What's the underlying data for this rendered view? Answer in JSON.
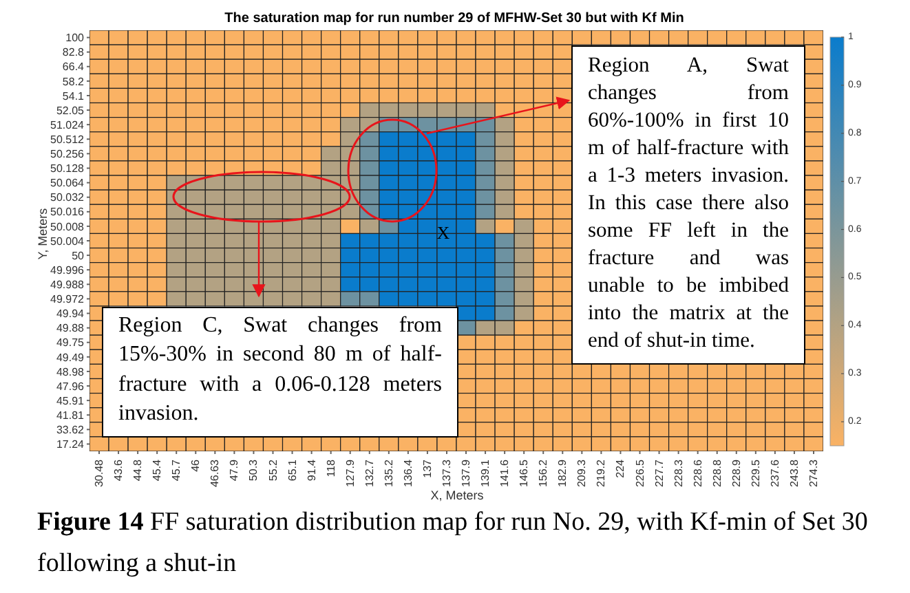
{
  "chart_data": {
    "type": "heatmap",
    "title": "The saturation map for run number 29 of MFHW-Set 30 but with Kf Min",
    "xlabel": "X, Meters",
    "ylabel": "Y, Meters",
    "categories": [
      "30.48",
      "43.6",
      "44.8",
      "45.4",
      "45.7",
      "46",
      "46.63",
      "47.9",
      "50.3",
      "55.2",
      "65.1",
      "91.4",
      "118",
      "127.9",
      "132.7",
      "135.2",
      "136.4",
      "137",
      "137.3",
      "137.9",
      "139.1",
      "141.6",
      "146.5",
      "156.2",
      "182.9",
      "209.3",
      "219.2",
      "224",
      "226.5",
      "227.7",
      "228.3",
      "228.6",
      "228.8",
      "228.9",
      "229.5",
      "237.6",
      "243.8",
      "274.3"
    ],
    "y_categories": [
      "100",
      "82.8",
      "66.4",
      "58.2",
      "54.1",
      "52.05",
      "51.024",
      "50.512",
      "50.256",
      "50.128",
      "50.064",
      "50.032",
      "50.016",
      "50.008",
      "50.004",
      "50",
      "49.996",
      "49.988",
      "49.972",
      "49.94",
      "49.88",
      "49.75",
      "49.49",
      "48.98",
      "47.96",
      "45.91",
      "41.81",
      "33.62",
      "17.24"
    ],
    "cells": [
      [
        0.15,
        0.15,
        0.15,
        0.15,
        0.15,
        0.15,
        0.15,
        0.15,
        0.15,
        0.15,
        0.15,
        0.15,
        0.15,
        0.15,
        0.15,
        0.15,
        0.15,
        0.15,
        0.15,
        0.15,
        0.15,
        0.15,
        0.15,
        0.15,
        0.15,
        0.15,
        0.15,
        0.15,
        0.15,
        0.15,
        0.15,
        0.15,
        0.15,
        0.15,
        0.15,
        0.15,
        0.15,
        0.15
      ],
      [
        0.15,
        0.15,
        0.15,
        0.15,
        0.15,
        0.15,
        0.15,
        0.15,
        0.15,
        0.15,
        0.15,
        0.15,
        0.15,
        0.15,
        0.15,
        0.15,
        0.15,
        0.15,
        0.15,
        0.15,
        0.15,
        0.15,
        0.15,
        0.15,
        0.15,
        null,
        null,
        null,
        null,
        null,
        null,
        null,
        null,
        null,
        null,
        null,
        null,
        0.15
      ],
      [
        0.15,
        0.15,
        0.15,
        0.15,
        0.15,
        0.15,
        0.15,
        0.15,
        0.15,
        0.15,
        0.15,
        0.15,
        0.15,
        0.15,
        0.15,
        0.15,
        0.15,
        0.15,
        0.15,
        0.15,
        0.15,
        0.15,
        0.15,
        0.15,
        0.15,
        null,
        null,
        null,
        null,
        null,
        null,
        null,
        null,
        null,
        null,
        null,
        null,
        0.15
      ],
      [
        0.15,
        0.15,
        0.15,
        0.15,
        0.15,
        0.15,
        0.15,
        0.15,
        0.15,
        0.15,
        0.15,
        0.15,
        0.15,
        0.15,
        0.15,
        0.15,
        0.15,
        0.15,
        0.15,
        0.15,
        0.15,
        0.15,
        0.15,
        0.15,
        0.15,
        null,
        null,
        null,
        null,
        null,
        null,
        null,
        null,
        null,
        null,
        null,
        null,
        0.15
      ],
      [
        0.15,
        0.15,
        0.15,
        0.15,
        0.15,
        0.15,
        0.15,
        0.15,
        0.15,
        0.15,
        0.15,
        0.15,
        0.15,
        0.15,
        0.15,
        0.15,
        0.15,
        0.15,
        0.15,
        0.15,
        0.15,
        0.15,
        0.15,
        0.15,
        0.15,
        null,
        null,
        null,
        null,
        null,
        null,
        null,
        null,
        null,
        null,
        null,
        null,
        0.15
      ],
      [
        0.15,
        0.15,
        0.15,
        0.15,
        0.15,
        0.15,
        0.15,
        0.15,
        0.15,
        0.15,
        0.15,
        0.15,
        0.15,
        0.15,
        0.4,
        0.4,
        0.4,
        0.4,
        0.4,
        0.4,
        0.4,
        0.15,
        0.15,
        0.15,
        0.15,
        null,
        null,
        null,
        null,
        null,
        null,
        null,
        null,
        null,
        null,
        null,
        null,
        0.15
      ],
      [
        0.15,
        0.15,
        0.15,
        0.15,
        0.15,
        0.15,
        0.15,
        0.15,
        0.15,
        0.15,
        0.15,
        0.15,
        0.15,
        0.4,
        0.4,
        0.65,
        0.65,
        0.65,
        0.65,
        0.65,
        0.65,
        0.4,
        0.15,
        0.15,
        0.15,
        null,
        null,
        null,
        null,
        null,
        null,
        null,
        null,
        null,
        null,
        null,
        null,
        0.15
      ],
      [
        0.15,
        0.15,
        0.15,
        0.15,
        0.15,
        0.15,
        0.15,
        0.15,
        0.15,
        0.15,
        0.15,
        0.15,
        0.15,
        0.4,
        0.65,
        1,
        1,
        1,
        1,
        1,
        0.65,
        0.4,
        0.15,
        0.15,
        0.15,
        null,
        null,
        null,
        null,
        null,
        null,
        null,
        null,
        null,
        null,
        null,
        null,
        0.15
      ],
      [
        0.15,
        0.15,
        0.15,
        0.15,
        0.15,
        0.15,
        0.15,
        0.15,
        0.15,
        0.15,
        0.15,
        0.15,
        0.4,
        0.4,
        0.65,
        1,
        1,
        1,
        1,
        1,
        0.65,
        0.4,
        0.15,
        0.15,
        0.15,
        null,
        null,
        null,
        null,
        null,
        null,
        null,
        null,
        null,
        null,
        null,
        null,
        0.15
      ],
      [
        0.15,
        0.15,
        0.15,
        0.15,
        0.15,
        0.15,
        0.15,
        0.15,
        0.15,
        0.15,
        0.15,
        0.15,
        0.4,
        0.4,
        0.65,
        1,
        1,
        1,
        1,
        1,
        0.65,
        0.4,
        0.15,
        0.15,
        0.15,
        null,
        null,
        null,
        null,
        null,
        null,
        null,
        null,
        null,
        null,
        null,
        null,
        0.15
      ],
      [
        0.15,
        0.15,
        0.15,
        0.15,
        0.4,
        0.4,
        0.4,
        0.4,
        0.4,
        0.4,
        0.4,
        0.4,
        0.4,
        0.4,
        0.65,
        1,
        1,
        1,
        1,
        1,
        0.65,
        0.4,
        0.15,
        0.15,
        0.15,
        null,
        null,
        null,
        null,
        null,
        null,
        null,
        null,
        null,
        null,
        null,
        null,
        0.15
      ],
      [
        0.15,
        0.15,
        0.15,
        0.15,
        0.4,
        0.4,
        0.4,
        0.4,
        0.4,
        0.4,
        0.4,
        0.4,
        0.4,
        0.4,
        0.65,
        1,
        1,
        1,
        1,
        1,
        0.65,
        0.4,
        0.15,
        0.15,
        0.15,
        null,
        null,
        null,
        null,
        null,
        null,
        null,
        null,
        null,
        null,
        null,
        null,
        0.15
      ],
      [
        0.15,
        0.15,
        0.15,
        0.15,
        0.4,
        0.4,
        0.4,
        0.4,
        0.4,
        0.4,
        0.4,
        0.4,
        0.4,
        0.4,
        0.65,
        1,
        1,
        1,
        1,
        1,
        0.65,
        0.4,
        0.15,
        0.15,
        0.15,
        null,
        null,
        null,
        null,
        null,
        null,
        null,
        null,
        null,
        null,
        null,
        null,
        0.15
      ],
      [
        0.15,
        0.15,
        0.15,
        0.15,
        0.4,
        0.4,
        0.4,
        0.4,
        0.4,
        0.4,
        0.4,
        0.4,
        0.4,
        0.15,
        0.4,
        0.65,
        1,
        1,
        1,
        1,
        0.4,
        0.15,
        0.4,
        0.15,
        0.15,
        null,
        null,
        null,
        null,
        null,
        null,
        null,
        null,
        null,
        null,
        null,
        null,
        0.15
      ],
      [
        0.15,
        0.15,
        0.15,
        0.15,
        0.4,
        0.4,
        0.4,
        0.4,
        0.4,
        0.4,
        0.4,
        0.4,
        0.4,
        1,
        1,
        1,
        1,
        1,
        1,
        1,
        1,
        0.65,
        0.4,
        0.15,
        0.15,
        null,
        null,
        null,
        null,
        null,
        null,
        null,
        null,
        null,
        null,
        null,
        null,
        0.15
      ],
      [
        0.15,
        0.15,
        0.15,
        0.15,
        0.4,
        0.4,
        0.4,
        0.4,
        0.4,
        0.4,
        0.4,
        0.4,
        0.4,
        1,
        1,
        1,
        1,
        1,
        1,
        1,
        1,
        0.65,
        0.4,
        0.15,
        0.15,
        null,
        null,
        null,
        null,
        null,
        null,
        null,
        null,
        null,
        null,
        null,
        null,
        0.15
      ],
      [
        0.15,
        0.15,
        0.15,
        0.15,
        0.4,
        0.4,
        0.4,
        0.4,
        0.4,
        0.4,
        0.4,
        0.4,
        0.4,
        1,
        1,
        1,
        1,
        1,
        1,
        1,
        1,
        0.65,
        0.4,
        0.15,
        0.15,
        null,
        null,
        null,
        null,
        null,
        null,
        null,
        null,
        null,
        null,
        null,
        null,
        0.15
      ],
      [
        0.15,
        0.15,
        0.15,
        0.15,
        0.4,
        0.4,
        0.4,
        0.4,
        0.4,
        0.4,
        0.4,
        0.4,
        0.4,
        1,
        1,
        1,
        1,
        1,
        1,
        1,
        1,
        0.65,
        0.4,
        0.15,
        0.15,
        null,
        null,
        null,
        null,
        null,
        null,
        null,
        null,
        null,
        null,
        null,
        null,
        0.15
      ],
      [
        0.15,
        0.15,
        0.15,
        0.15,
        0.4,
        0.4,
        0.4,
        0.4,
        0.4,
        0.4,
        0.4,
        0.4,
        0.4,
        0.65,
        0.65,
        1,
        1,
        1,
        1,
        1,
        1,
        0.65,
        0.4,
        0.15,
        0.15,
        null,
        null,
        null,
        null,
        null,
        null,
        null,
        null,
        null,
        null,
        null,
        null,
        0.15
      ],
      [
        0.15,
        null,
        null,
        null,
        null,
        null,
        null,
        null,
        null,
        null,
        null,
        null,
        null,
        null,
        null,
        null,
        null,
        null,
        null,
        1,
        1,
        0.65,
        0.4,
        0.15,
        0.15,
        null,
        null,
        null,
        null,
        null,
        null,
        null,
        null,
        null,
        null,
        null,
        null,
        0.15
      ],
      [
        0.15,
        null,
        null,
        null,
        null,
        null,
        null,
        null,
        null,
        null,
        null,
        null,
        null,
        null,
        null,
        null,
        null,
        null,
        null,
        0.65,
        0.4,
        0.4,
        0.15,
        0.15,
        0.15,
        null,
        null,
        null,
        null,
        null,
        null,
        null,
        null,
        null,
        null,
        null,
        null,
        0.15
      ],
      [
        0.15,
        null,
        null,
        null,
        null,
        null,
        null,
        null,
        null,
        null,
        null,
        null,
        null,
        null,
        null,
        null,
        null,
        null,
        null,
        0.15,
        0.15,
        0.15,
        0.15,
        0.15,
        0.15,
        null,
        null,
        null,
        null,
        null,
        null,
        null,
        null,
        null,
        null,
        null,
        null,
        0.15
      ],
      [
        0.15,
        null,
        null,
        null,
        null,
        null,
        null,
        null,
        null,
        null,
        null,
        null,
        null,
        null,
        null,
        null,
        null,
        null,
        null,
        0.15,
        0.15,
        0.15,
        0.15,
        0.15,
        0.15,
        null,
        null,
        null,
        null,
        null,
        null,
        null,
        null,
        null,
        null,
        null,
        null,
        0.15
      ],
      [
        0.15,
        null,
        null,
        null,
        null,
        null,
        null,
        null,
        null,
        null,
        null,
        null,
        null,
        null,
        null,
        null,
        null,
        null,
        null,
        0.15,
        0.15,
        0.15,
        0.15,
        0.15,
        0.15,
        0.15,
        0.15,
        0.15,
        0.15,
        0.15,
        0.15,
        0.15,
        0.15,
        0.15,
        0.15,
        0.15,
        0.15,
        0.15
      ],
      [
        0.15,
        null,
        null,
        null,
        null,
        null,
        null,
        null,
        null,
        null,
        null,
        null,
        null,
        null,
        null,
        null,
        null,
        null,
        null,
        0.15,
        0.15,
        0.15,
        0.15,
        0.15,
        0.15,
        0.15,
        0.15,
        0.15,
        0.15,
        0.15,
        0.15,
        0.15,
        0.15,
        0.15,
        0.15,
        0.15,
        0.15,
        0.15
      ],
      [
        0.15,
        null,
        null,
        null,
        null,
        null,
        null,
        null,
        null,
        null,
        null,
        null,
        null,
        null,
        null,
        null,
        null,
        null,
        null,
        0.15,
        0.15,
        0.15,
        0.15,
        0.15,
        0.15,
        0.15,
        0.15,
        0.15,
        0.15,
        0.15,
        0.15,
        0.15,
        0.15,
        0.15,
        0.15,
        0.15,
        0.15,
        0.15
      ],
      [
        0.15,
        null,
        null,
        null,
        null,
        null,
        null,
        null,
        null,
        null,
        null,
        null,
        null,
        null,
        null,
        null,
        null,
        null,
        null,
        0.15,
        0.15,
        0.15,
        0.15,
        0.15,
        0.15,
        0.15,
        0.15,
        0.15,
        0.15,
        0.15,
        0.15,
        0.15,
        0.15,
        0.15,
        0.15,
        0.15,
        0.15,
        0.15
      ],
      [
        0.15,
        null,
        null,
        null,
        null,
        null,
        null,
        null,
        null,
        null,
        null,
        null,
        null,
        null,
        null,
        null,
        null,
        null,
        null,
        0.15,
        0.15,
        0.15,
        0.15,
        0.15,
        0.15,
        0.15,
        0.15,
        0.15,
        0.15,
        0.15,
        0.15,
        0.15,
        0.15,
        0.15,
        0.15,
        0.15,
        0.15,
        0.15
      ],
      [
        0.15,
        0.15,
        0.15,
        0.15,
        0.15,
        0.15,
        0.15,
        0.15,
        0.15,
        0.15,
        0.15,
        0.15,
        0.15,
        0.15,
        0.15,
        0.15,
        0.15,
        0.15,
        0.15,
        0.15,
        0.15,
        0.15,
        0.15,
        0.15,
        0.15,
        0.15,
        0.15,
        0.15,
        0.15,
        0.15,
        0.15,
        0.15,
        0.15,
        0.15,
        0.15,
        0.15,
        0.15,
        0.15
      ]
    ],
    "clim": [
      0.15,
      1
    ],
    "cticks": [
      0.2,
      0.3,
      0.4,
      0.5,
      0.6,
      0.7,
      0.8,
      0.9,
      1
    ],
    "annotations": [
      "X",
      "Region A, Swat changes from 60%-100% in first 10 m of half-fracture with a 1-3 meters invasion. In this case there also some FF left in the fracture and was unable to be imbibed into the matrix at the end of shut-in time.",
      "Region C, Swat changes from 15%-30% in second 80 m of half-fracture with a 0.06-0.128 meters invasion.",
      "Figure 14 FF saturation distribution map for run No. 29, with Kf-min of Set 30 following a shut-in"
    ]
  }
}
